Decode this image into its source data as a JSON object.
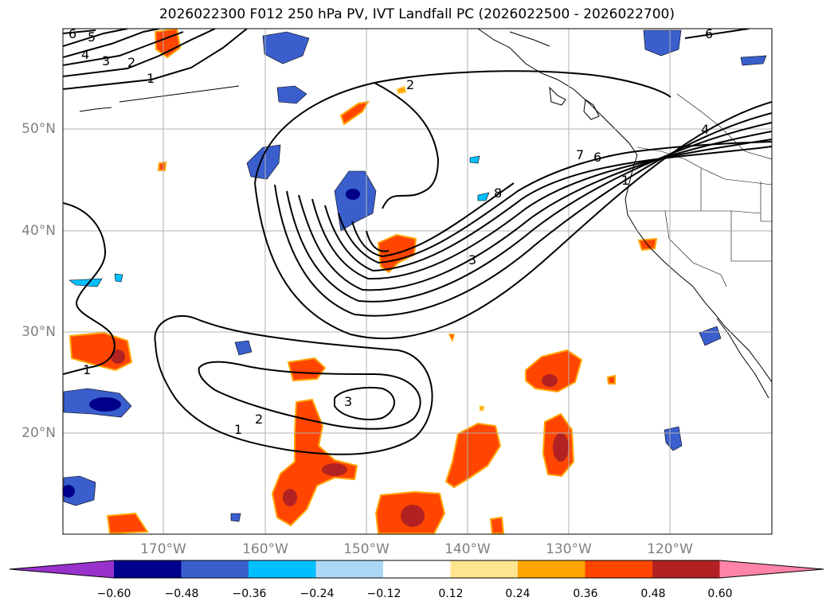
{
  "title": "2026022300 F012 250 hPa PV, IVT Landfall PC (2026022500 - 2026022700)",
  "lat_labels": [
    "50°N",
    "40°N",
    "30°N",
    "20°N"
  ],
  "lon_labels": [
    "170°W",
    "160°W",
    "150°W",
    "140°W",
    "130°W",
    "120°W"
  ],
  "colorbar": {
    "ticks": [
      "−0.60",
      "−0.48",
      "−0.36",
      "−0.24",
      "−0.12",
      "0.12",
      "0.24",
      "0.36",
      "0.48",
      "0.60"
    ],
    "colors": [
      "#9932cc",
      "#00008b",
      "#3a5fcd",
      "#00bfff",
      "#add8f5",
      "#ffffff",
      "#ffe58f",
      "#ffa500",
      "#ff4500",
      "#b22222",
      "#ff85a8"
    ]
  },
  "contour_labels": [
    "6",
    "5",
    "4",
    "3",
    "2",
    "1",
    "2",
    "7",
    "6",
    "4",
    "1",
    "8",
    "3",
    "1",
    "2",
    "3",
    "1",
    "6"
  ]
}
